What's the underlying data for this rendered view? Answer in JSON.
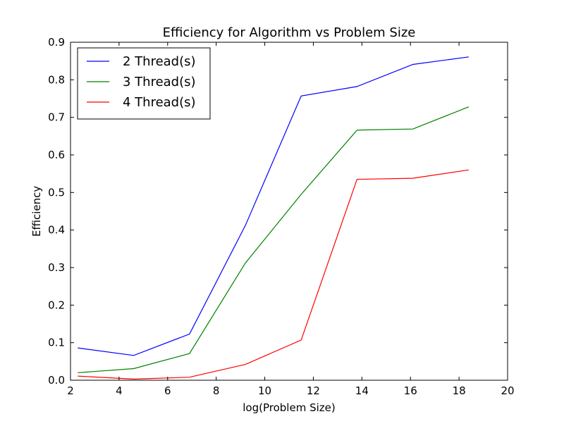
{
  "chart_data": {
    "type": "line",
    "title": "Efficiency for Algorithm vs Problem Size",
    "xlabel": "log(Problem Size)",
    "ylabel": "Efficiency",
    "xlim": [
      2,
      20
    ],
    "ylim": [
      0.0,
      0.9
    ],
    "xticks": [
      "2",
      "4",
      "6",
      "8",
      "10",
      "12",
      "14",
      "16",
      "18",
      "20"
    ],
    "yticks": [
      "0.0",
      "0.1",
      "0.2",
      "0.3",
      "0.4",
      "0.5",
      "0.6",
      "0.7",
      "0.8",
      "0.9"
    ],
    "grid": false,
    "legend_position": "upper-left",
    "x": [
      2.3,
      4.6,
      6.9,
      9.2,
      11.5,
      13.8,
      16.1,
      18.4
    ],
    "series": [
      {
        "name": "2 Thread(s)",
        "color": "#0000ff",
        "values": [
          0.086,
          0.066,
          0.123,
          0.412,
          0.757,
          0.782,
          0.841,
          0.861
        ]
      },
      {
        "name": "3 Thread(s)",
        "color": "#008000",
        "values": [
          0.02,
          0.031,
          0.071,
          0.312,
          0.495,
          0.666,
          0.669,
          0.728
        ]
      },
      {
        "name": "4 Thread(s)",
        "color": "#ff0000",
        "values": [
          0.011,
          0.003,
          0.008,
          0.042,
          0.107,
          0.535,
          0.538,
          0.56
        ]
      }
    ]
  }
}
